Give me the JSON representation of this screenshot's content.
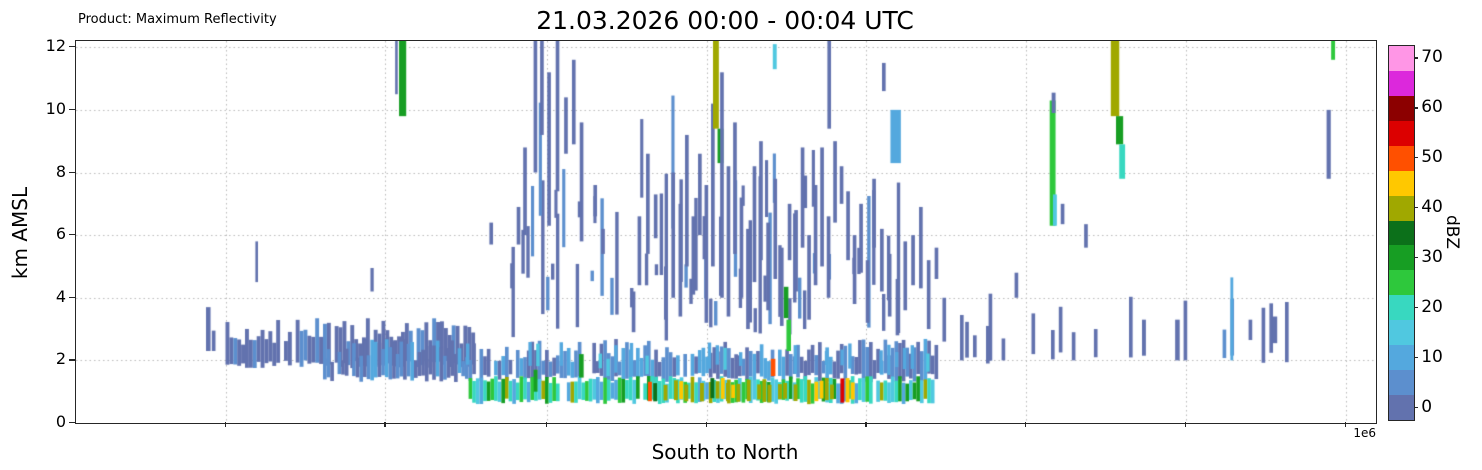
{
  "chart_data": {
    "type": "heatmap",
    "title": "21.03.2026 00:00 - 00:04 UTC",
    "product_label": "Product: Maximum Reflectivity",
    "xlabel": "South to North",
    "ylabel": "km AMSL",
    "x_offset_label": "1e6",
    "ylim": [
      0,
      12.2
    ],
    "yticks": [
      0,
      2,
      4,
      6,
      8,
      10,
      12
    ],
    "grid": true,
    "x_gridlines": [
      0.115,
      0.238,
      0.362,
      0.485,
      0.608,
      0.731,
      0.854,
      0.977
    ],
    "colorbar": {
      "label": "dBZ",
      "ticks": [
        0,
        10,
        20,
        30,
        40,
        50,
        60,
        70
      ],
      "vmin": -2.5,
      "vmax": 72.5,
      "levels": [
        -2.5,
        2.5,
        7.5,
        12.5,
        17.5,
        22.5,
        27.5,
        32.5,
        37.5,
        42.5,
        47.5,
        52.5,
        57.5,
        62.5,
        67.5,
        72.5
      ],
      "colors": [
        "#6272ae",
        "#5c8fce",
        "#54a8de",
        "#50c8e0",
        "#38d8c0",
        "#2ec83c",
        "#179e23",
        "#0c701a",
        "#a0a800",
        "#ffc800",
        "#ff5000",
        "#dc0000",
        "#8c0000",
        "#dc28dc",
        "#ff96e6"
      ]
    },
    "cells_format": [
      "x_fraction",
      "y0_km",
      "y1_km",
      "dBZ",
      "width_fraction_optional"
    ],
    "cells": [
      [
        0.1,
        2.3,
        3.7,
        2,
        0.0035
      ],
      [
        0.1045,
        2.3,
        2.95,
        2
      ],
      [
        0.138,
        4.5,
        5.8,
        1,
        0.002
      ],
      [
        0.2265,
        4.2,
        4.95,
        2,
        0.0025
      ],
      [
        0.2455,
        10.5,
        12.2,
        2,
        0.002
      ],
      [
        0.2485,
        9.8,
        12.2,
        30,
        0.0055
      ],
      [
        0.318,
        5.7,
        6.4,
        2
      ],
      [
        0.334,
        4.3,
        5.1,
        2
      ],
      [
        0.339,
        5.7,
        6.9,
        2
      ],
      [
        0.344,
        6.0,
        8.8,
        2
      ],
      [
        0.352,
        8.0,
        12.2,
        2
      ],
      [
        0.352,
        1.0,
        1.7,
        28,
        0.003
      ],
      [
        0.357,
        9.2,
        12.2,
        2
      ],
      [
        0.3625,
        6.3,
        11.2,
        2
      ],
      [
        0.369,
        7.4,
        12.2,
        2
      ],
      [
        0.3755,
        8.6,
        10.4,
        2
      ],
      [
        0.3815,
        8.9,
        11.6,
        2
      ],
      [
        0.387,
        1.45,
        2.2,
        30,
        0.0035
      ],
      [
        0.3875,
        5.8,
        9.6,
        2
      ],
      [
        0.398,
        6.6,
        7.6,
        2
      ],
      [
        0.404,
        5.4,
        6.2,
        2
      ],
      [
        0.4275,
        2.9,
        4.2,
        2
      ],
      [
        0.432,
        4.4,
        6.6,
        2
      ],
      [
        0.4385,
        5.4,
        8.6,
        2
      ],
      [
        0.4445,
        5.9,
        7.3,
        2
      ],
      [
        0.4523,
        3.3,
        5.0,
        2
      ],
      [
        0.458,
        4.0,
        8.0,
        2
      ],
      [
        0.4635,
        3.4,
        7.0,
        2
      ],
      [
        0.4685,
        5.0,
        9.2,
        2
      ],
      [
        0.4735,
        4.1,
        6.6,
        2
      ],
      [
        0.4785,
        6.0,
        8.6,
        2
      ],
      [
        0.4835,
        3.2,
        7.6,
        2
      ],
      [
        0.4885,
        5.0,
        10.2,
        2
      ],
      [
        0.49,
        9.4,
        12.2,
        40,
        0.0045
      ],
      [
        0.4935,
        8.3,
        9.4,
        30,
        0.0045
      ],
      [
        0.4955,
        4.0,
        11.2,
        2
      ],
      [
        0.5005,
        3.4,
        8.2,
        2
      ],
      [
        0.5055,
        5.4,
        9.6,
        2
      ],
      [
        0.5105,
        4.0,
        7.2,
        2
      ],
      [
        0.5155,
        3.0,
        6.2,
        2
      ],
      [
        0.5205,
        4.5,
        8.2,
        2
      ],
      [
        0.5255,
        5.2,
        9.0,
        2
      ],
      [
        0.531,
        3.6,
        6.4,
        2
      ],
      [
        0.5345,
        1.5,
        2.05,
        50,
        0.0035
      ],
      [
        0.536,
        11.3,
        12.1,
        14,
        0.003
      ],
      [
        0.5365,
        4.6,
        7.8,
        2
      ],
      [
        0.5415,
        3.1,
        5.6,
        2
      ],
      [
        0.5445,
        3.35,
        4.35,
        30,
        0.0035
      ],
      [
        0.5465,
        2.3,
        3.3,
        25,
        0.0035
      ],
      [
        0.5475,
        5.2,
        7.0,
        2
      ],
      [
        0.5525,
        4.2,
        6.8,
        2
      ],
      [
        0.5575,
        5.6,
        8.8,
        2
      ],
      [
        0.5625,
        3.3,
        6.0,
        2
      ],
      [
        0.5675,
        4.4,
        7.6,
        2
      ],
      [
        0.5725,
        5.0,
        8.8,
        2
      ],
      [
        0.5775,
        4.0,
        6.6,
        2
      ],
      [
        0.578,
        9.4,
        12.2,
        2
      ],
      [
        0.5825,
        6.4,
        9.0,
        2
      ],
      [
        0.5875,
        7.0,
        8.2,
        2
      ],
      [
        0.5925,
        5.2,
        7.4,
        2
      ],
      [
        0.5975,
        3.8,
        6.0,
        2
      ],
      [
        0.6025,
        4.8,
        7.0,
        2
      ],
      [
        0.6075,
        3.2,
        5.2,
        2
      ],
      [
        0.6125,
        5.6,
        7.8,
        2
      ],
      [
        0.6185,
        4.2,
        6.2,
        2
      ],
      [
        0.62,
        10.6,
        11.5,
        2
      ],
      [
        0.6245,
        3.4,
        5.4,
        2
      ],
      [
        0.6265,
        8.3,
        10.0,
        12,
        0.008
      ],
      [
        0.6305,
        2.8,
        4.6,
        2
      ],
      [
        0.6365,
        3.6,
        5.8,
        2
      ],
      [
        0.6425,
        4.4,
        6.0,
        2
      ],
      [
        0.6485,
        4.3,
        6.9,
        2
      ],
      [
        0.6545,
        3.0,
        5.2,
        2
      ],
      [
        0.6605,
        4.6,
        5.6,
        2
      ],
      [
        0.6665,
        2.6,
        4.0,
        2
      ],
      [
        0.68,
        2.0,
        3.45,
        2
      ],
      [
        0.69,
        2.1,
        2.8,
        2
      ],
      [
        0.7,
        1.9,
        3.1,
        2
      ],
      [
        0.712,
        2.0,
        2.7,
        2
      ],
      [
        0.722,
        4.0,
        4.8,
        2
      ],
      [
        0.735,
        2.2,
        3.5,
        2
      ],
      [
        0.749,
        6.3,
        10.3,
        25,
        0.0045
      ],
      [
        0.7505,
        9.9,
        10.55,
        2,
        0.003
      ],
      [
        0.7515,
        6.3,
        7.3,
        16,
        0.003
      ],
      [
        0.7575,
        6.35,
        7.0,
        2
      ],
      [
        0.766,
        2.0,
        2.9,
        2
      ],
      [
        0.7755,
        5.6,
        6.35,
        2
      ],
      [
        0.783,
        2.1,
        3.0,
        2
      ],
      [
        0.796,
        9.8,
        12.2,
        40,
        0.0065
      ],
      [
        0.8,
        8.9,
        9.8,
        28,
        0.0055
      ],
      [
        0.8025,
        7.8,
        8.9,
        22,
        0.0045
      ],
      [
        0.82,
        2.15,
        3.3,
        2,
        0.003
      ],
      [
        0.8455,
        2.0,
        3.3,
        2,
        0.0035
      ],
      [
        0.888,
        2.0,
        4.65,
        12,
        0.0022
      ],
      [
        0.902,
        2.65,
        3.3,
        2
      ],
      [
        0.9205,
        2.55,
        3.4,
        2,
        0.0035
      ],
      [
        0.962,
        7.8,
        10.0,
        2,
        0.0032
      ],
      [
        0.9655,
        11.6,
        12.2,
        25,
        0.003
      ]
    ],
    "bands": [
      {
        "name": "left-slate-band",
        "x0": 0.115,
        "x1": 0.305,
        "step": 0.003,
        "p": 0.88,
        "y0": [
          1.75,
          2.0
        ],
        "y1": [
          2.5,
          3.35
        ],
        "values": [
          0,
          0,
          0,
          2,
          4
        ],
        "w": 0.003
      },
      {
        "name": "low-level-band",
        "x0": 0.19,
        "x1": 0.665,
        "step": 0.0028,
        "p": 0.92,
        "y0": [
          1.3,
          1.6
        ],
        "y1": [
          1.95,
          2.7
        ],
        "values": [
          0,
          0,
          2,
          4,
          6,
          8
        ],
        "w": 0.0028
      },
      {
        "name": "surface-band",
        "x0": 0.302,
        "x1": 0.665,
        "step": 0.0028,
        "p": 0.95,
        "y0": [
          0.6,
          0.78
        ],
        "y1": [
          1.25,
          1.5
        ],
        "values": [
          10,
          14,
          18,
          22,
          26,
          18,
          14,
          30,
          22,
          38
        ],
        "w": 0.0028
      },
      {
        "name": "surface-hot-core",
        "x0": 0.44,
        "x1": 0.6,
        "step": 0.004,
        "p": 0.6,
        "y0": [
          0.65,
          0.8
        ],
        "y1": [
          1.2,
          1.45
        ],
        "values": [
          34,
          38,
          42,
          46,
          50,
          42,
          46,
          54,
          38
        ],
        "w": 0.003
      },
      {
        "name": "low-cyan-specks",
        "x0": 0.3,
        "x1": 0.66,
        "step": 0.006,
        "p": 0.25,
        "y0": [
          1.45,
          1.9
        ],
        "y1": [
          2.0,
          2.6
        ],
        "values": [
          10,
          14,
          12
        ],
        "w": 0.0026
      },
      {
        "name": "mid-level-scatter",
        "x0": 0.335,
        "x1": 0.635,
        "step": 0.0038,
        "p": 0.55,
        "y0": [
          2.6,
          4.8
        ],
        "y1": [
          3.4,
          8.0
        ],
        "values": [
          0,
          0,
          2,
          4,
          2,
          6
        ],
        "w": 0.0026
      },
      {
        "name": "upper-scatter",
        "x0": 0.35,
        "x1": 0.6,
        "step": 0.006,
        "p": 0.3,
        "y0": [
          5.0,
          7.5
        ],
        "y1": [
          6.5,
          10.5
        ],
        "values": [
          0,
          2,
          4
        ],
        "w": 0.0024
      },
      {
        "name": "right-scatter",
        "x0": 0.672,
        "x1": 0.935,
        "step": 0.006,
        "p": 0.22,
        "y0": [
          1.9,
          2.3
        ],
        "y1": [
          2.6,
          4.6
        ],
        "values": [
          0,
          2,
          4
        ],
        "w": 0.0028
      }
    ]
  }
}
